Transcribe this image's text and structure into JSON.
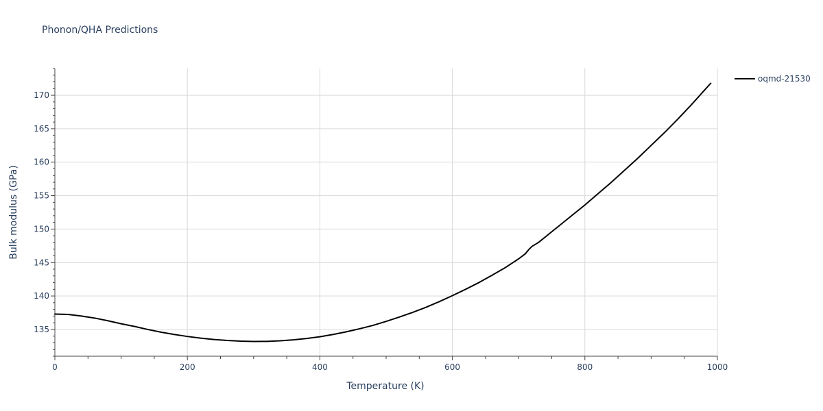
{
  "chart_data": {
    "type": "line",
    "title": "Phonon/QHA Predictions",
    "xlabel": "Temperature (K)",
    "ylabel": "Bulk modulus (GPa)",
    "xlim": [
      0,
      1000
    ],
    "ylim": [
      131,
      174
    ],
    "x_ticks": [
      0,
      200,
      400,
      600,
      800,
      1000
    ],
    "y_ticks": [
      135,
      140,
      145,
      150,
      155,
      160,
      165,
      170
    ],
    "grid": true,
    "legend_position": "top-right",
    "series": [
      {
        "name": "oqmd-21530",
        "color": "#000000",
        "x": [
          0,
          20,
          40,
          60,
          80,
          100,
          120,
          140,
          160,
          180,
          200,
          220,
          240,
          260,
          280,
          300,
          320,
          340,
          360,
          380,
          400,
          420,
          440,
          460,
          480,
          500,
          520,
          540,
          560,
          580,
          600,
          620,
          640,
          660,
          680,
          700,
          710,
          715,
          720,
          730,
          740,
          760,
          780,
          800,
          820,
          840,
          860,
          880,
          900,
          920,
          940,
          960,
          980,
          990
        ],
        "y": [
          137.3,
          137.25,
          137.0,
          136.7,
          136.3,
          135.85,
          135.45,
          135.0,
          134.6,
          134.25,
          133.95,
          133.7,
          133.5,
          133.35,
          133.25,
          133.2,
          133.22,
          133.3,
          133.45,
          133.65,
          133.9,
          134.25,
          134.65,
          135.1,
          135.6,
          136.2,
          136.85,
          137.55,
          138.3,
          139.15,
          140.05,
          141.0,
          142.0,
          143.1,
          144.25,
          145.55,
          146.3,
          146.9,
          147.4,
          148.0,
          148.8,
          150.4,
          152.0,
          153.6,
          155.3,
          157.0,
          158.8,
          160.6,
          162.5,
          164.4,
          166.4,
          168.5,
          170.7,
          171.8
        ]
      }
    ]
  }
}
